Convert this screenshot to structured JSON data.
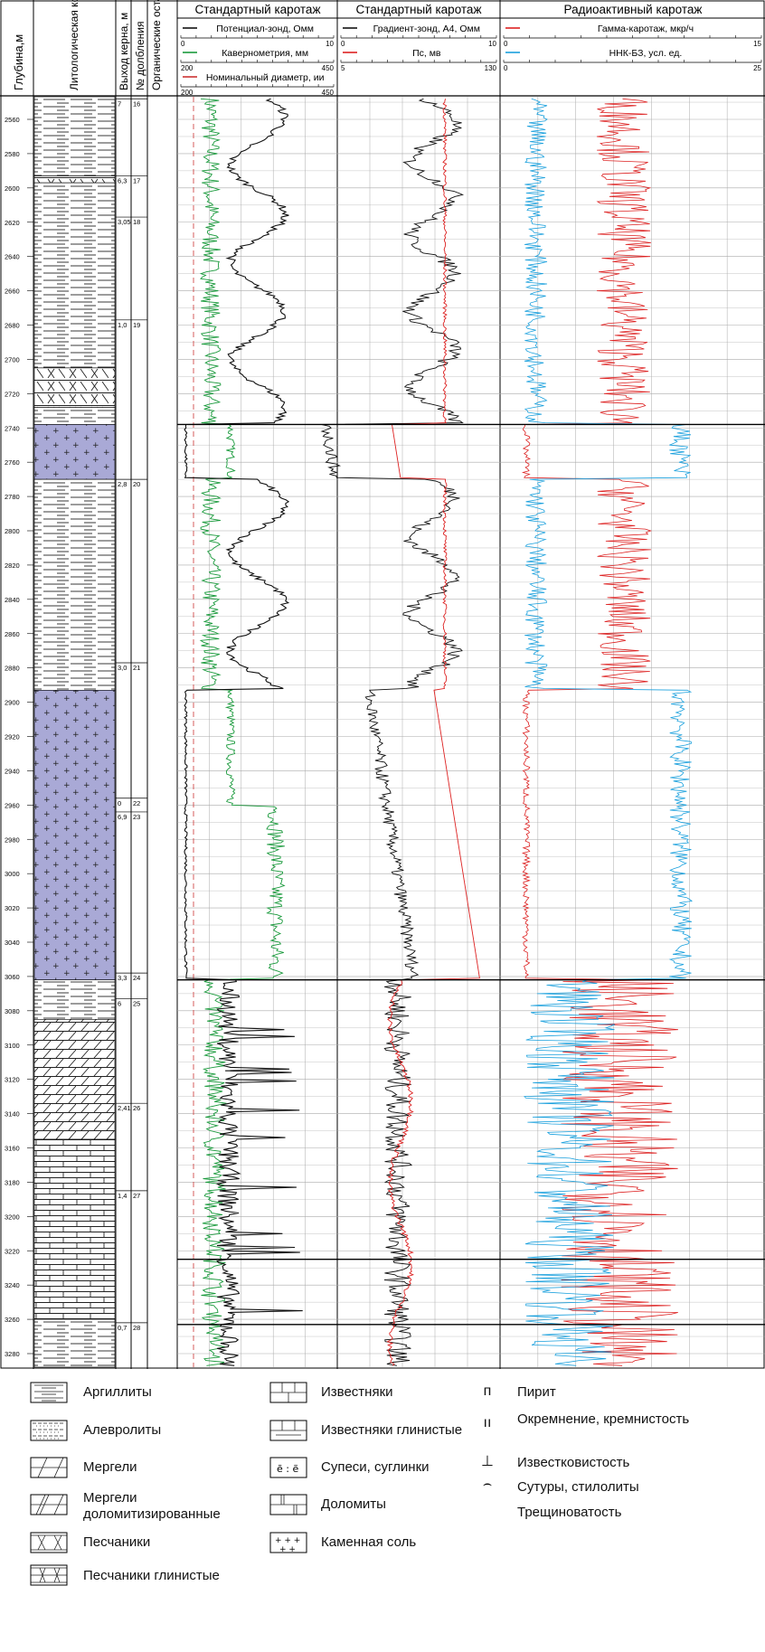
{
  "headers": {
    "depth": "Глубина,м",
    "lith": "Литологическая колонка",
    "core": "Выход керна, м",
    "run": "№ долбления",
    "organic": "Органические остатки",
    "track1": "Стандартный каротаж",
    "track2": "Стандартный каротаж",
    "track3": "Радиоактивный каротаж"
  },
  "curves": {
    "t1": [
      {
        "name": "Потенциал-зонд, Омм",
        "color": "#111111",
        "min": "0",
        "max": "10"
      },
      {
        "name": "Кавернометрия, мм",
        "color": "#1a9a3c",
        "min": "200",
        "max": "450"
      },
      {
        "name": "Номинальный диаметр, ии",
        "color": "#cc3333",
        "min": "200",
        "max": "450"
      }
    ],
    "t2": [
      {
        "name": "Градиент-зонд, А4, Омм",
        "color": "#111111",
        "min": "0",
        "max": "10"
      },
      {
        "name": "Пс, мв",
        "color": "#dd2222",
        "min": "5",
        "max": "130"
      }
    ],
    "t3": [
      {
        "name": "Гамма-каротаж, мкр/ч",
        "color": "#dd2222",
        "min": "0",
        "max": "15"
      },
      {
        "name": "ННК-БЗ, усл. ед.",
        "color": "#1aa0dd",
        "min": "0",
        "max": "25"
      }
    ]
  },
  "depth_ticks": [
    "2560",
    "2580",
    "2600",
    "2620",
    "2640",
    "2660",
    "2680",
    "2700",
    "2720",
    "2740",
    "2760",
    "2780",
    "2800",
    "2820",
    "2840",
    "2860",
    "2880",
    "2900",
    "2920",
    "2940",
    "2960",
    "2980",
    "3000",
    "3020",
    "3040",
    "3060",
    "3080",
    "3100",
    "3120",
    "3140",
    "3160",
    "3180",
    "3200",
    "3220",
    "3240",
    "3260",
    "3280"
  ],
  "core_entries": [
    {
      "depth": 2548,
      "core": "7",
      "run": "16"
    },
    {
      "depth": 2593,
      "core": "6,3",
      "run": "17"
    },
    {
      "depth": 2617,
      "core": "3,05",
      "run": "18"
    },
    {
      "depth": 2677,
      "core": "1,0",
      "run": "19"
    },
    {
      "depth": 2770,
      "core": "2,8",
      "run": "20"
    },
    {
      "depth": 2877,
      "core": "3,0",
      "run": "21"
    },
    {
      "depth": 2956,
      "core": "0",
      "run": "22"
    },
    {
      "depth": 2964,
      "core": "6,9",
      "run": "23"
    },
    {
      "depth": 3058,
      "core": "3,3",
      "run": "24"
    },
    {
      "depth": 3073,
      "core": "6",
      "run": "25"
    },
    {
      "depth": 3134,
      "core": "2,41",
      "run": "26"
    },
    {
      "depth": 3185,
      "core": "1,4",
      "run": "27"
    },
    {
      "depth": 3262,
      "core": "0,7",
      "run": "28"
    }
  ],
  "lithology": [
    {
      "from": 2540,
      "to": 2593,
      "type": "argillite",
      "dolomitic": true
    },
    {
      "from": 2593,
      "to": 2597,
      "type": "sandstone"
    },
    {
      "from": 2597,
      "to": 2705,
      "type": "argillite"
    },
    {
      "from": 2705,
      "to": 2728,
      "type": "sandstone"
    },
    {
      "from": 2728,
      "to": 2738,
      "type": "argillite"
    },
    {
      "from": 2738,
      "to": 2770,
      "type": "salt"
    },
    {
      "from": 2770,
      "to": 2893,
      "type": "argillite"
    },
    {
      "from": 2893,
      "to": 3062,
      "type": "salt"
    },
    {
      "from": 3062,
      "to": 3085,
      "type": "argillite"
    },
    {
      "from": 3085,
      "to": 3155,
      "type": "marl"
    },
    {
      "from": 3155,
      "to": 3260,
      "type": "limestone"
    },
    {
      "from": 3260,
      "to": 3290,
      "type": "argillite"
    }
  ],
  "legend": {
    "col1": [
      "Аргиллиты",
      "Алевролиты",
      "Мергели",
      "Мергели доломитизированные",
      "Песчаники",
      "Песчаники глинистые"
    ],
    "col2": [
      "Известняки",
      "Известняки глинистые",
      "Супеси, суглинки",
      "Доломиты",
      "Каменная соль"
    ],
    "col3": [
      "Пирит",
      "Окремнение, кремнистость",
      "Известковистость",
      "Сутуры, стилолиты",
      "Трещиноватость"
    ],
    "col3_symbols": [
      "п",
      "ıı",
      "⊥",
      "⌢",
      ""
    ]
  },
  "colors": {
    "salt": "#a9a9d6",
    "grid": "#aaaaaa",
    "line": "#000000"
  }
}
